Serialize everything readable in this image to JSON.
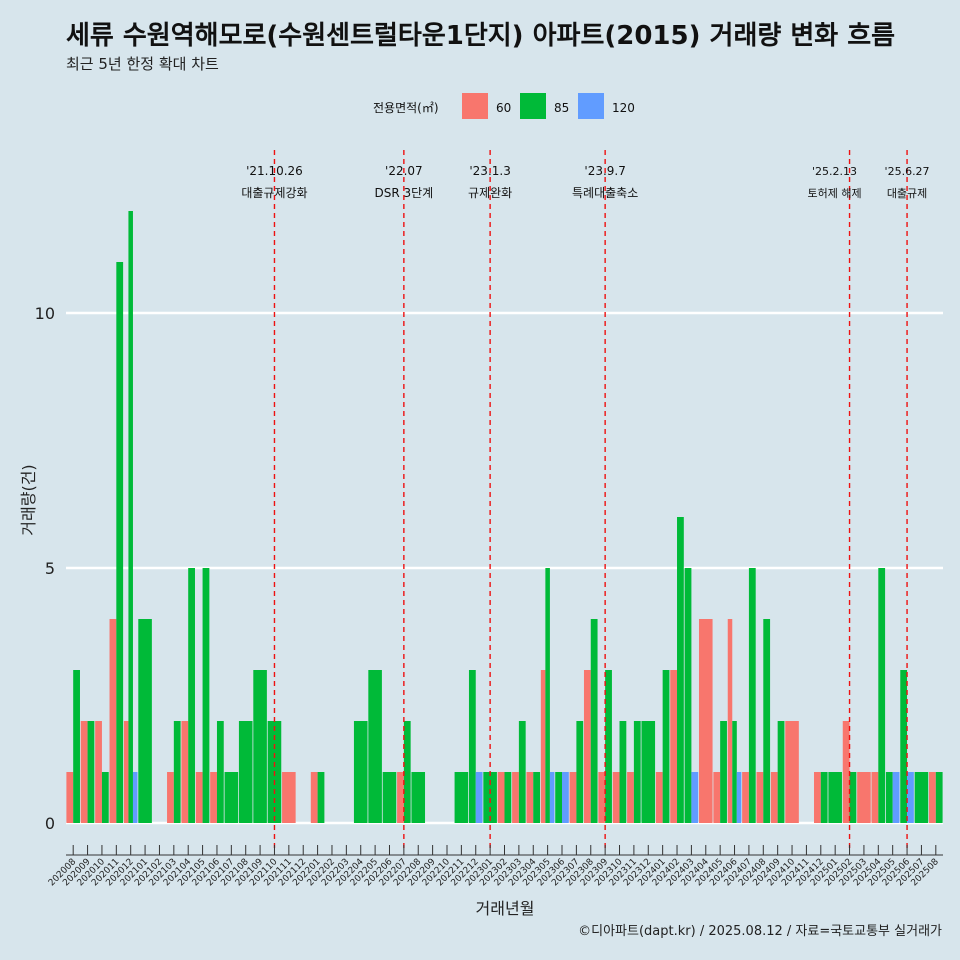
{
  "header": {
    "title": "세류 수원역해모로(수원센트럴타운1단지) 아파트(2015) 거래량 변화 흐름",
    "subtitle": "최근 5년 한정 확대 차트"
  },
  "source": "©디아파트(dapt.kr) / 2025.08.12 / 자료=국토교통부 실거래가",
  "colors": {
    "60": "#f8766d",
    "85": "#00ba38",
    "120": "#619cff",
    "event": "#ee1111",
    "grid": "#ffffff",
    "background": "#d7e5ec"
  },
  "chart_data": {
    "type": "bar",
    "title": "세류 수원역해모로(수원센트럴타운1단지) 아파트(2015) 거래량 변화 흐름",
    "subtitle": "최근 5년 한정 확대 차트",
    "xlabel": "거래년월",
    "ylabel": "거래량(건)",
    "legend_title": "전용면적(㎡)",
    "legend_position": "top",
    "ylim": [
      0,
      12
    ],
    "yticks": [
      0,
      5,
      10
    ],
    "grid": true,
    "categories": [
      "202008",
      "202009",
      "202010",
      "202011",
      "202012",
      "202101",
      "202102",
      "202103",
      "202104",
      "202105",
      "202106",
      "202107",
      "202108",
      "202109",
      "202110",
      "202111",
      "202112",
      "202201",
      "202202",
      "202203",
      "202204",
      "202205",
      "202206",
      "202207",
      "202208",
      "202209",
      "202210",
      "202211",
      "202212",
      "202301",
      "202302",
      "202303",
      "202304",
      "202305",
      "202306",
      "202307",
      "202308",
      "202309",
      "202310",
      "202311",
      "202312",
      "202401",
      "202402",
      "202403",
      "202404",
      "202405",
      "202406",
      "202407",
      "202408",
      "202409",
      "202410",
      "202411",
      "202412",
      "202501",
      "202502",
      "202503",
      "202504",
      "202505",
      "202506",
      "202507",
      "202508"
    ],
    "series": [
      {
        "name": "60",
        "values": [
          1,
          2,
          2,
          4,
          2,
          0,
          0,
          1,
          2,
          1,
          1,
          0,
          0,
          0,
          0,
          1,
          0,
          1,
          0,
          0,
          0,
          0,
          0,
          1,
          0,
          0,
          0,
          0,
          0,
          0,
          1,
          1,
          1,
          3,
          0,
          1,
          3,
          1,
          1,
          1,
          0,
          1,
          3,
          0,
          4,
          1,
          4,
          1,
          1,
          1,
          2,
          0,
          1,
          0,
          2,
          1,
          1,
          0,
          0,
          0,
          1
        ]
      },
      {
        "name": "85",
        "values": [
          3,
          2,
          1,
          11,
          12,
          4,
          0,
          2,
          5,
          5,
          2,
          1,
          2,
          3,
          2,
          0,
          0,
          1,
          0,
          0,
          2,
          3,
          1,
          2,
          1,
          0,
          0,
          1,
          3,
          1,
          1,
          2,
          1,
          5,
          1,
          2,
          4,
          3,
          2,
          2,
          2,
          3,
          6,
          5,
          0,
          2,
          2,
          5,
          4,
          2,
          0,
          0,
          1,
          1,
          1,
          0,
          5,
          1,
          3,
          1,
          1
        ]
      },
      {
        "name": "120",
        "values": [
          0,
          0,
          0,
          0,
          1,
          0,
          0,
          0,
          0,
          0,
          0,
          0,
          0,
          0,
          0,
          0,
          0,
          0,
          0,
          0,
          0,
          0,
          0,
          0,
          0,
          0,
          0,
          0,
          1,
          0,
          0,
          0,
          0,
          1,
          1,
          0,
          0,
          0,
          0,
          0,
          0,
          0,
          0,
          1,
          0,
          0,
          1,
          0,
          0,
          0,
          0,
          0,
          0,
          0,
          0,
          0,
          0,
          1,
          1,
          0,
          0
        ]
      }
    ],
    "events": [
      {
        "date": "'21.10.26",
        "label": "대출규제강화",
        "category": "202110"
      },
      {
        "date": "'22.07",
        "label": "DSR 3단계",
        "category": "202207"
      },
      {
        "date": "'23.1.3",
        "label": "규제완화",
        "category": "202301"
      },
      {
        "date": "'23.9.7",
        "label": "특례대출축소",
        "category": "202309"
      },
      {
        "date": "'25.2.13",
        "label": "토허제 해제",
        "category": "202502"
      },
      {
        "date": "'25.6.27",
        "label": "대출규제",
        "category": "202506"
      }
    ]
  }
}
